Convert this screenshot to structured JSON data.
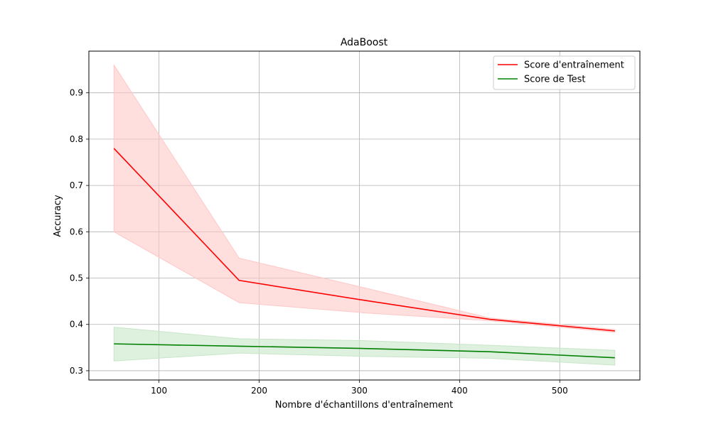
{
  "chart_data": {
    "type": "line",
    "title": "AdaBoost",
    "xlabel": "Nombre d'échantillons d'entraînement",
    "ylabel": "Accuracy",
    "xlim": [
      30,
      580
    ],
    "ylim": [
      0.28,
      0.99
    ],
    "x_ticks": [
      100,
      200,
      300,
      400,
      500
    ],
    "y_ticks": [
      0.3,
      0.4,
      0.5,
      0.6,
      0.7,
      0.8,
      0.9
    ],
    "x_tick_labels": [
      "100",
      "200",
      "300",
      "400",
      "500"
    ],
    "y_tick_labels": [
      "0.3",
      "0.4",
      "0.5",
      "0.6",
      "0.7",
      "0.8",
      "0.9"
    ],
    "grid": true,
    "legend_position": "top-right",
    "x": [
      55,
      180,
      305,
      430,
      555
    ],
    "series": [
      {
        "name": "Score d'entraînement",
        "color": "#ff0000",
        "values": [
          0.78,
          0.495,
          0.452,
          0.411,
          0.386
        ],
        "band_lower": [
          0.6,
          0.447,
          0.425,
          0.408,
          0.383
        ],
        "band_upper": [
          0.96,
          0.543,
          0.479,
          0.414,
          0.389
        ],
        "band_color": "#ffc8c8"
      },
      {
        "name": "Score de Test",
        "color": "#008000",
        "values": [
          0.358,
          0.353,
          0.348,
          0.341,
          0.328
        ],
        "band_lower": [
          0.321,
          0.338,
          0.331,
          0.327,
          0.312
        ],
        "band_upper": [
          0.394,
          0.369,
          0.365,
          0.355,
          0.344
        ],
        "band_color": "#c8e6c8"
      }
    ]
  }
}
